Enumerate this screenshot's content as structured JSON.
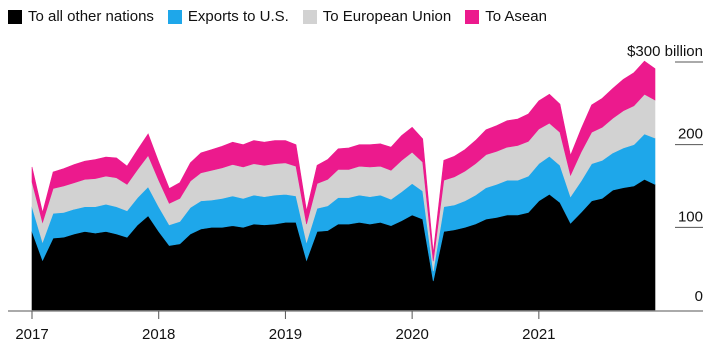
{
  "chart_data": {
    "type": "area",
    "stacked": true,
    "x_start": "2017-01",
    "x_ticks": [
      "2017",
      "2018",
      "2019",
      "2020",
      "2021"
    ],
    "y_ticks": [
      "$300 billion",
      "200",
      "100",
      "0"
    ],
    "ylim": [
      0,
      300
    ],
    "grid": false,
    "legend": "top",
    "series": [
      {
        "name": "To all other nations",
        "color": "#000000",
        "values": [
          95,
          60,
          87,
          88,
          92,
          95,
          93,
          95,
          92,
          88,
          103,
          114,
          95,
          78,
          80,
          92,
          98,
          100,
          100,
          102,
          100,
          104,
          103,
          104,
          106,
          106,
          60,
          95,
          96,
          104,
          104,
          106,
          104,
          106,
          102,
          108,
          115,
          110,
          35,
          95,
          97,
          100,
          104,
          110,
          112,
          115,
          115,
          118,
          132,
          140,
          130,
          105,
          118,
          132,
          135,
          145,
          148,
          150,
          158,
          152
        ]
      },
      {
        "name": "Exports to U.S.",
        "color": "#1ea7ea",
        "values": [
          30,
          22,
          30,
          30,
          30,
          30,
          32,
          33,
          33,
          32,
          33,
          35,
          30,
          25,
          27,
          32,
          34,
          33,
          35,
          36,
          35,
          35,
          34,
          35,
          34,
          32,
          22,
          28,
          30,
          32,
          32,
          33,
          33,
          33,
          32,
          35,
          38,
          34,
          12,
          30,
          30,
          32,
          35,
          38,
          40,
          42,
          42,
          44,
          45,
          46,
          45,
          32,
          38,
          45,
          46,
          45,
          48,
          50,
          55,
          56
        ]
      },
      {
        "name": "To European Union",
        "color": "#d2d2d2",
        "values": [
          30,
          24,
          30,
          32,
          32,
          33,
          34,
          34,
          35,
          32,
          34,
          38,
          32,
          26,
          28,
          32,
          34,
          36,
          37,
          38,
          38,
          38,
          38,
          38,
          38,
          36,
          22,
          30,
          32,
          34,
          34,
          35,
          36,
          35,
          35,
          38,
          38,
          35,
          12,
          32,
          34,
          36,
          38,
          40,
          40,
          40,
          42,
          42,
          42,
          40,
          40,
          26,
          35,
          38,
          40,
          42,
          45,
          47,
          48,
          46
        ]
      },
      {
        "name": "To Asean",
        "color": "#ec1a8d",
        "values": [
          18,
          12,
          20,
          21,
          22,
          22,
          23,
          23,
          24,
          22,
          24,
          26,
          22,
          18,
          19,
          22,
          24,
          25,
          26,
          27,
          27,
          28,
          28,
          28,
          27,
          26,
          16,
          22,
          24,
          25,
          26,
          26,
          27,
          27,
          28,
          30,
          30,
          28,
          10,
          24,
          25,
          26,
          28,
          30,
          31,
          32,
          32,
          33,
          34,
          35,
          34,
          24,
          28,
          33,
          35,
          36,
          38,
          40,
          40,
          38
        ]
      }
    ]
  }
}
